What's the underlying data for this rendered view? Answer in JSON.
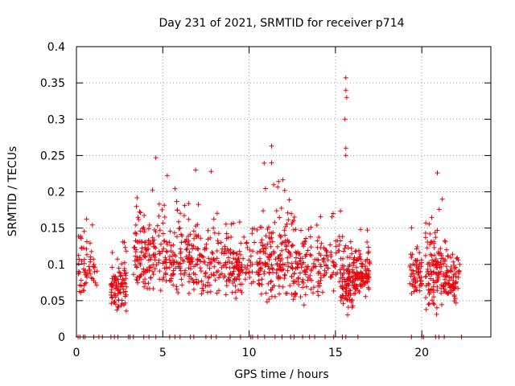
{
  "chart_data": {
    "type": "scatter",
    "title": "Day 231 of 2021, SRMTID for receiver p714",
    "xlabel": "GPS time / hours",
    "ylabel": "SRMTID / TECUs",
    "xlim": [
      0,
      24
    ],
    "ylim": [
      0,
      0.4
    ],
    "xticks": [
      0,
      5,
      10,
      15,
      20
    ],
    "xtick_labels": [
      "0",
      "5",
      "10",
      "15",
      "20"
    ],
    "yticks": [
      0,
      0.05,
      0.1,
      0.15,
      0.2,
      0.25,
      0.3,
      0.35,
      0.4
    ],
    "ytick_labels": [
      "0",
      "0.05",
      "0.1",
      "0.15",
      "0.2",
      "0.25",
      "0.3",
      "0.35",
      "0.4"
    ],
    "grid": true,
    "marker": "+",
    "color": "#e8000b",
    "series": [
      {
        "name": "SRMTID",
        "clusters": [
          {
            "x": [
              0.1,
              1.2
            ],
            "y": [
              0.04,
              0.2
            ],
            "n": 60
          },
          {
            "x": [
              2.0,
              2.9
            ],
            "y": [
              0.025,
              0.15
            ],
            "n": 90
          },
          {
            "x": [
              3.3,
              5.2
            ],
            "y": [
              0.04,
              0.25
            ],
            "n": 150
          },
          {
            "x": [
              5.2,
              7.0
            ],
            "y": [
              0.04,
              0.23
            ],
            "n": 130
          },
          {
            "x": [
              7.0,
              9.0
            ],
            "y": [
              0.04,
              0.22
            ],
            "n": 120
          },
          {
            "x": [
              9.0,
              10.8
            ],
            "y": [
              0.04,
              0.2
            ],
            "n": 120
          },
          {
            "x": [
              10.8,
              12.6
            ],
            "y": [
              0.03,
              0.26
            ],
            "n": 150
          },
          {
            "x": [
              12.6,
              14.3
            ],
            "y": [
              0.03,
              0.2
            ],
            "n": 110
          },
          {
            "x": [
              14.3,
              15.3
            ],
            "y": [
              0.05,
              0.2
            ],
            "n": 50
          },
          {
            "x": [
              15.3,
              16.2
            ],
            "y": [
              0.025,
              0.17
            ],
            "n": 110
          },
          {
            "x": [
              16.2,
              17.0
            ],
            "y": [
              0.05,
              0.16
            ],
            "n": 90
          },
          {
            "x": [
              19.3,
              20.0
            ],
            "y": [
              0.04,
              0.18
            ],
            "n": 60
          },
          {
            "x": [
              20.2,
              21.3
            ],
            "y": [
              0.02,
              0.23
            ],
            "n": 110
          },
          {
            "x": [
              21.3,
              22.2
            ],
            "y": [
              0.03,
              0.17
            ],
            "n": 80
          }
        ],
        "peaks": [
          {
            "x": 15.6,
            "y": 0.357
          },
          {
            "x": 15.6,
            "y": 0.34
          },
          {
            "x": 15.65,
            "y": 0.33
          },
          {
            "x": 15.55,
            "y": 0.3
          },
          {
            "x": 15.6,
            "y": 0.26
          },
          {
            "x": 15.6,
            "y": 0.25
          },
          {
            "x": 11.3,
            "y": 0.263
          },
          {
            "x": 11.3,
            "y": 0.24
          },
          {
            "x": 4.6,
            "y": 0.247
          },
          {
            "x": 6.9,
            "y": 0.23
          },
          {
            "x": 7.8,
            "y": 0.228
          },
          {
            "x": 20.9,
            "y": 0.226
          }
        ],
        "zero_points_x": [
          0.1,
          0.2,
          0.4,
          0.5,
          1.0,
          1.3,
          1.5,
          2.0,
          2.2,
          2.4,
          3.0,
          3.1,
          3.3,
          3.9,
          4.2,
          4.6,
          5.4,
          5.7,
          6.0,
          6.6,
          6.8,
          7.5,
          7.8,
          8.1,
          8.9,
          9.5,
          10.1,
          10.2,
          10.5,
          10.9,
          11.5,
          11.9,
          12.4,
          12.6,
          13.1,
          13.5,
          13.8,
          14.4,
          14.9,
          15.4,
          15.6,
          16.3,
          19.4,
          20.0,
          20.1,
          20.8,
          21.0,
          21.3,
          22.3
        ]
      }
    ]
  }
}
